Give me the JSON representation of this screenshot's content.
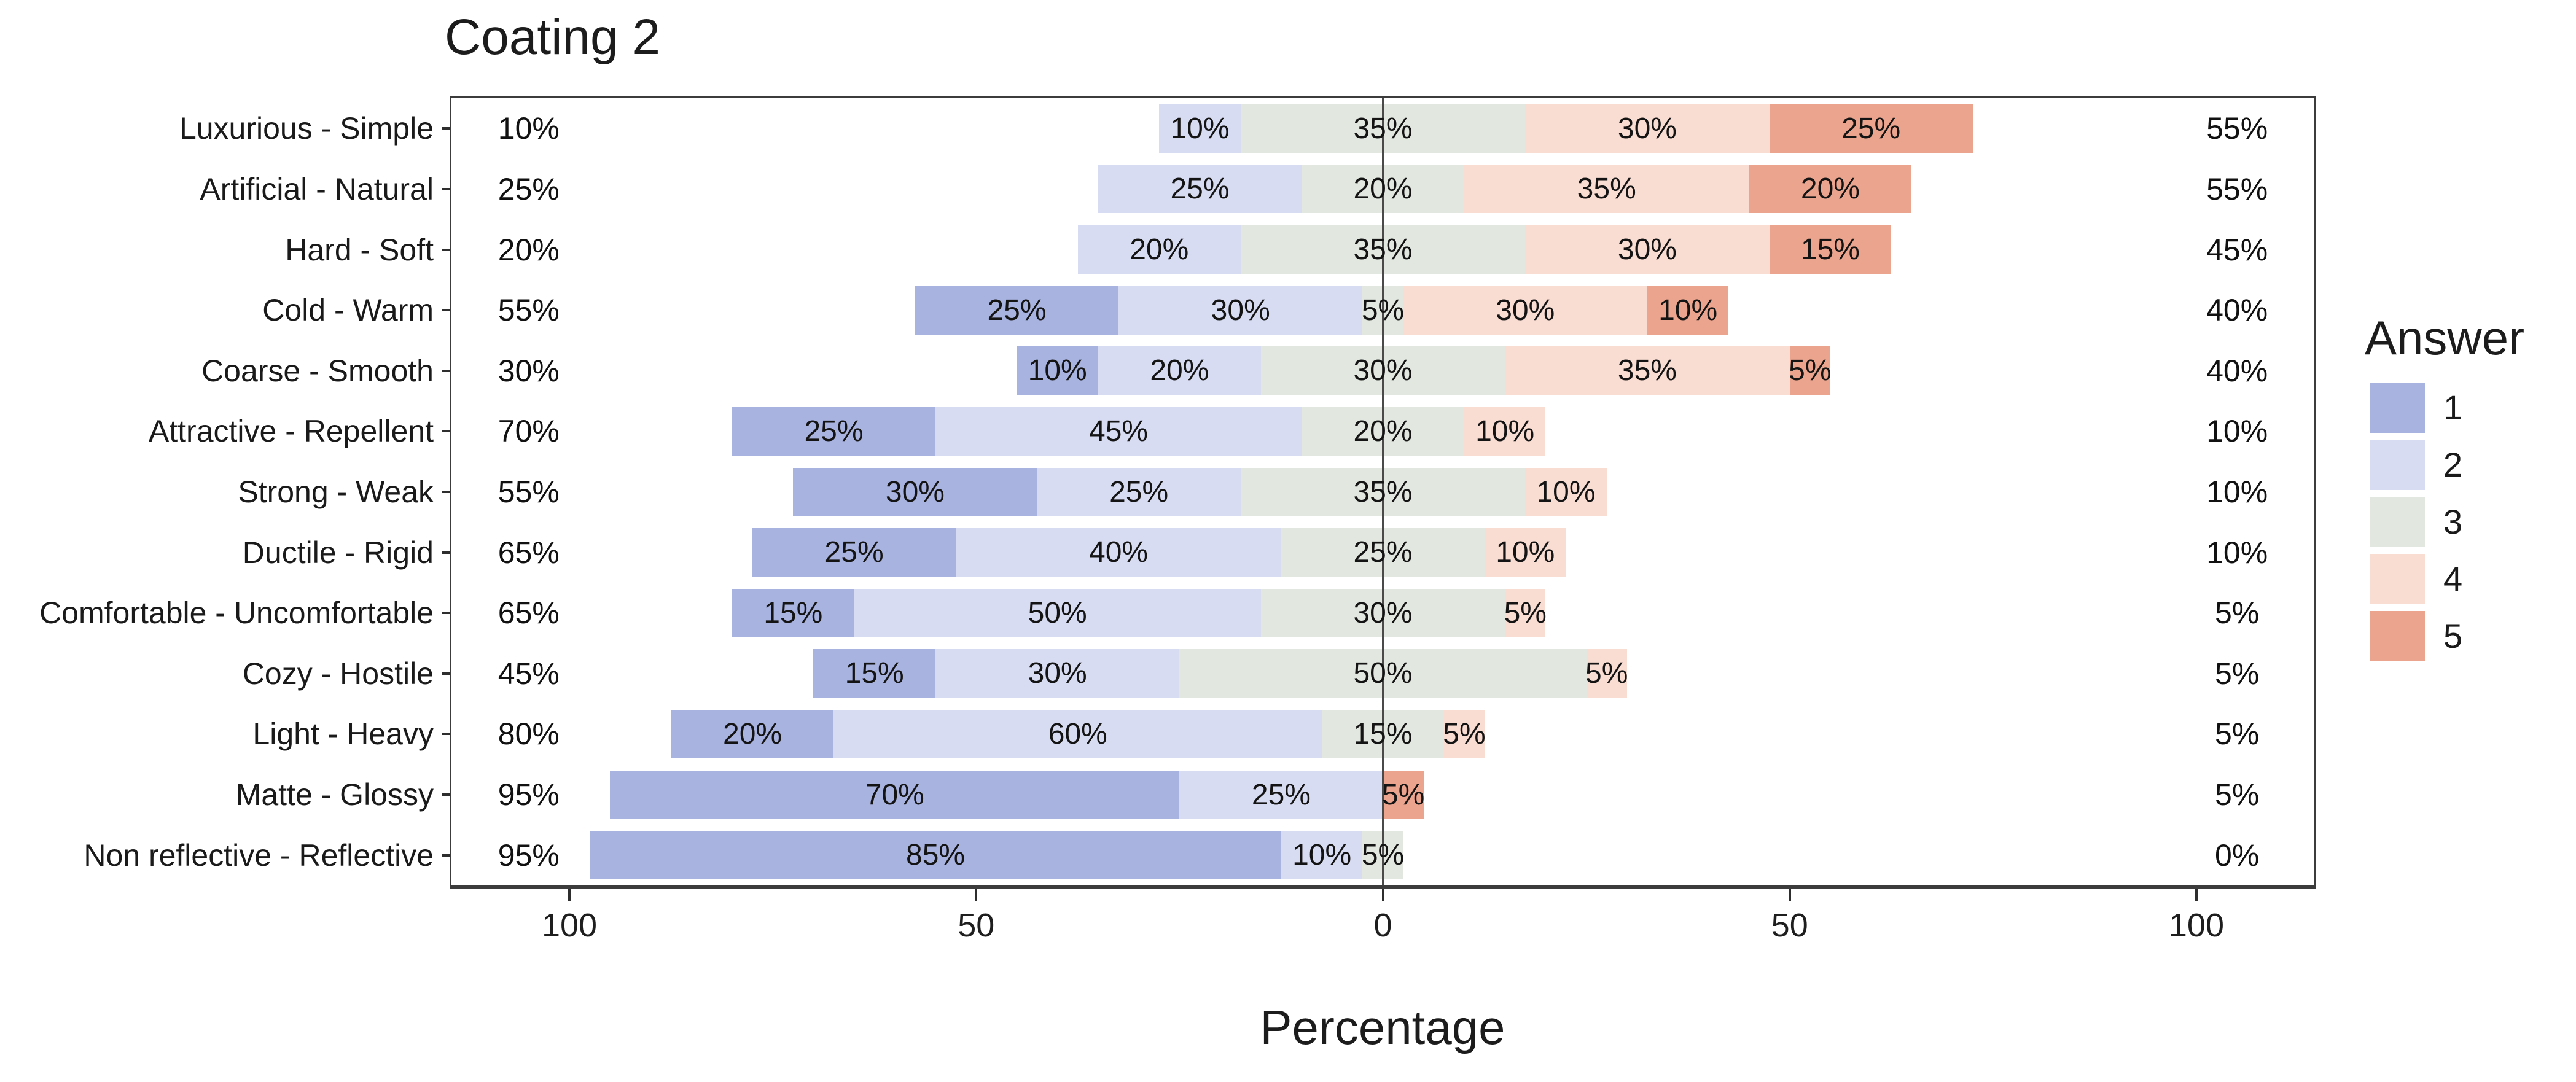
{
  "chart_data": {
    "type": "bar",
    "subtype": "diverging-stacked-likert",
    "title": "Coating 2",
    "xlabel": "Percentage",
    "legend_title": "Answer",
    "legend_position": "right",
    "series_labels": [
      "1",
      "2",
      "3",
      "4",
      "5"
    ],
    "series_colors": [
      "#a9b3e0",
      "#d8dcf3",
      "#e2e8e0",
      "#f9dcd2",
      "#eba48e"
    ],
    "neutral_category_split_at_zero": true,
    "label_format": "percent",
    "axis": {
      "tick_values": [
        -100,
        -50,
        0,
        50,
        100
      ],
      "tick_labels": [
        "100",
        "50",
        "0",
        "50",
        "100"
      ],
      "xlim": [
        -114.5,
        114.5
      ],
      "grid": false,
      "zero_reference_line": true
    },
    "categories": [
      "Luxurious - Simple",
      "Artificial - Natural",
      "Hard - Soft",
      "Cold - Warm",
      "Coarse - Smooth",
      "Attractive - Repellent",
      "Strong - Weak",
      "Ductile - Rigid",
      "Comfortable - Uncomfortable",
      "Cozy - Hostile",
      "Light - Heavy",
      "Matte - Glossy",
      "Non reflective - Reflective"
    ],
    "rows": [
      {
        "category": "Luxurious - Simple",
        "values": [
          0,
          10,
          35,
          30,
          25
        ],
        "low_label": "10%",
        "high_label": "55%"
      },
      {
        "category": "Artificial - Natural",
        "values": [
          0,
          25,
          20,
          35,
          20
        ],
        "low_label": "25%",
        "high_label": "55%"
      },
      {
        "category": "Hard - Soft",
        "values": [
          0,
          20,
          35,
          30,
          15
        ],
        "low_label": "20%",
        "high_label": "45%"
      },
      {
        "category": "Cold - Warm",
        "values": [
          25,
          30,
          5,
          30,
          10
        ],
        "low_label": "55%",
        "high_label": "40%"
      },
      {
        "category": "Coarse - Smooth",
        "values": [
          10,
          20,
          30,
          35,
          5
        ],
        "low_label": "30%",
        "high_label": "40%"
      },
      {
        "category": "Attractive - Repellent",
        "values": [
          25,
          45,
          20,
          10,
          0
        ],
        "low_label": "70%",
        "high_label": "10%"
      },
      {
        "category": "Strong - Weak",
        "values": [
          30,
          25,
          35,
          10,
          0
        ],
        "low_label": "55%",
        "high_label": "10%"
      },
      {
        "category": "Ductile - Rigid",
        "values": [
          25,
          40,
          25,
          10,
          0
        ],
        "low_label": "65%",
        "high_label": "10%"
      },
      {
        "category": "Comfortable - Uncomfortable",
        "values": [
          15,
          50,
          30,
          5,
          0
        ],
        "low_label": "65%",
        "high_label": "5%"
      },
      {
        "category": "Cozy - Hostile",
        "values": [
          15,
          30,
          50,
          5,
          0
        ],
        "low_label": "45%",
        "high_label": "5%"
      },
      {
        "category": "Light - Heavy",
        "values": [
          20,
          60,
          15,
          5,
          0
        ],
        "low_label": "80%",
        "high_label": "5%"
      },
      {
        "category": "Matte - Glossy",
        "values": [
          70,
          25,
          0,
          0,
          5
        ],
        "low_label": "95%",
        "high_label": "5%"
      },
      {
        "category": "Non reflective - Reflective",
        "values": [
          85,
          10,
          5,
          0,
          0
        ],
        "low_label": "95%",
        "high_label": "0%"
      }
    ]
  }
}
